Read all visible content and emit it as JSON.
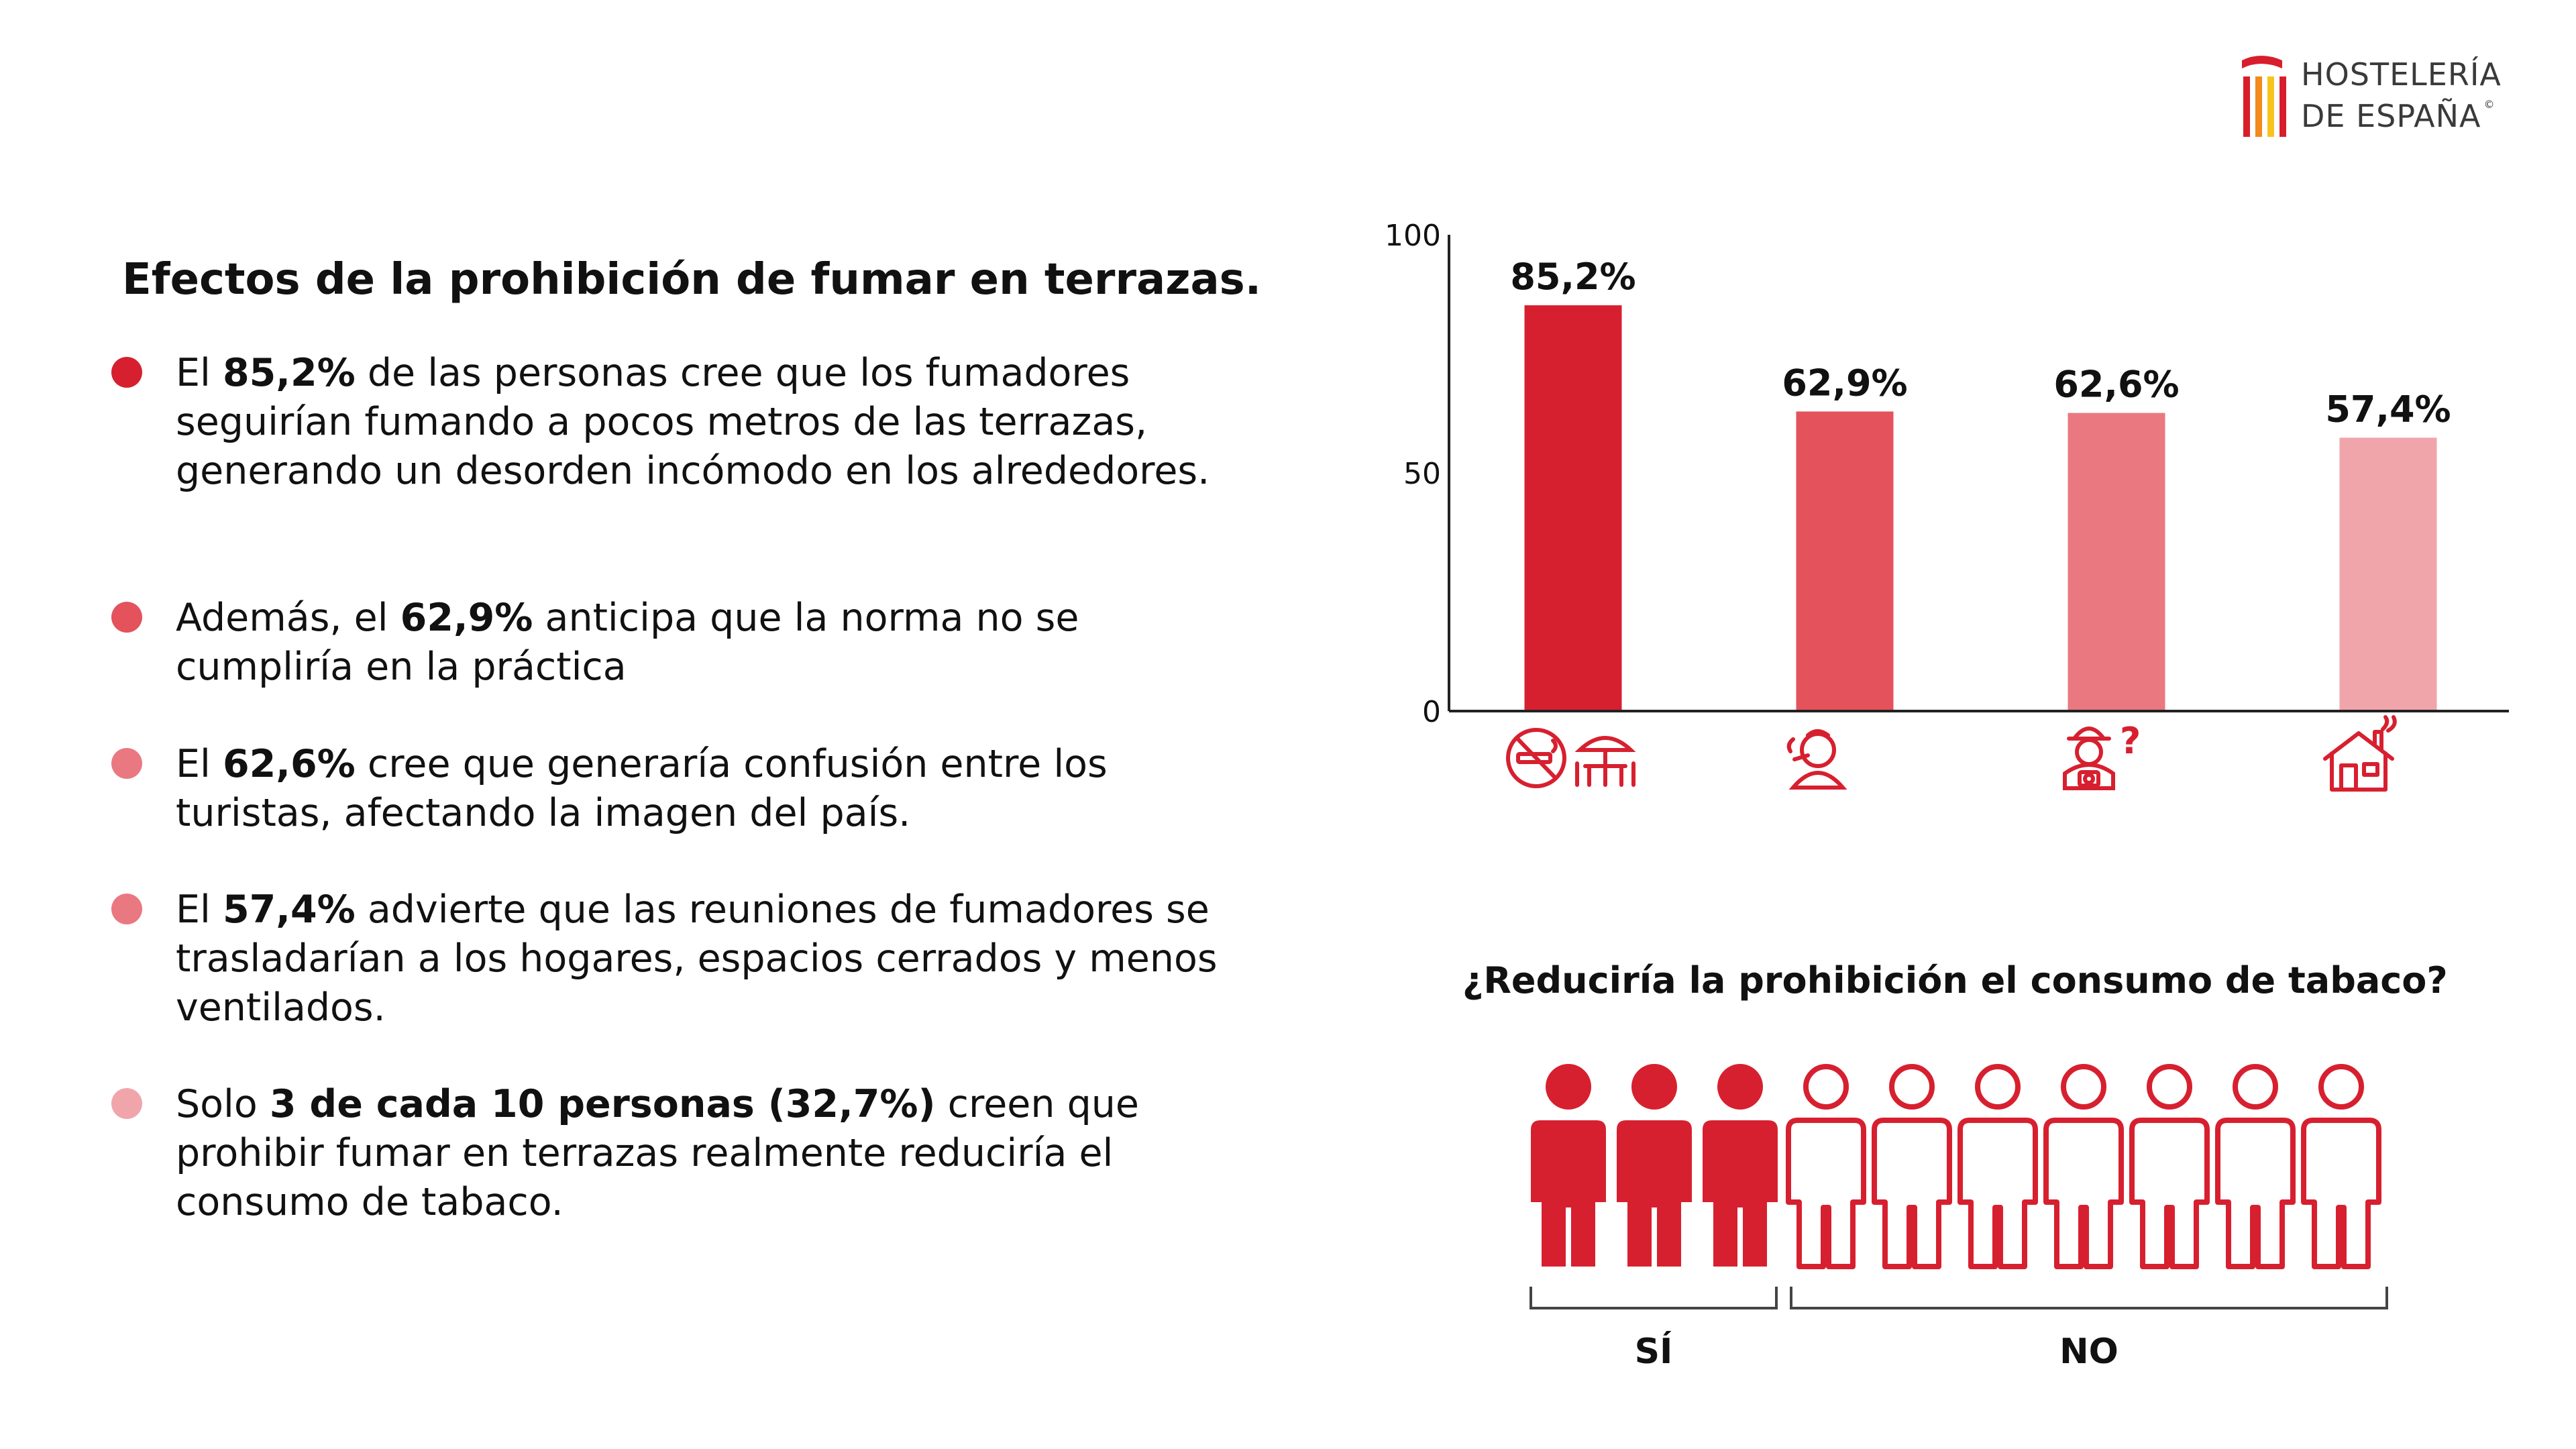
{
  "brand": {
    "line1": "HOSTELERÍA",
    "line2": "DE ESPAÑA",
    "copyright": "©",
    "colors": [
      "#d81e2c",
      "#f28a1e",
      "#f7c41f"
    ]
  },
  "title": "Efectos de la prohibición de fumar en terrazas.",
  "bullets": [
    {
      "pre": "El ",
      "bold": "85,2%",
      "post": " de las personas cree que los fumadores seguirían fumando a pocos metros de las terrazas, generando un desorden incómodo en los alrededores.",
      "color": "#d7202f"
    },
    {
      "pre": "Además, el ",
      "bold": "62,9%",
      "post": " anticipa que la norma no se cumpliría en la práctica",
      "color": "#e4525c"
    },
    {
      "pre": "El ",
      "bold": "62,6%",
      "post": " cree que generaría confusión entre los turistas, afectando la imagen del país.",
      "color": "#ea7880"
    },
    {
      "pre": "El ",
      "bold": "57,4%",
      "post": " advierte que las reuniones de fumadores se trasladarían a los hogares, espacios cerrados y menos ventilados.",
      "color": "#ea7880"
    },
    {
      "pre": "Solo ",
      "bold": "3 de cada 10 personas (32,7%)",
      "post": " creen que prohibir fumar en terrazas realmente reduciría el consumo de tabaco.",
      "color": "#f0a5ab"
    }
  ],
  "chart_data": {
    "type": "bar",
    "categories": [
      "no-smoking-terrace-icon",
      "smoker-icon",
      "tourist-icon",
      "home-smoke-icon"
    ],
    "values": [
      85.2,
      62.9,
      62.6,
      57.4
    ],
    "value_labels": [
      "85,2%",
      "62,9%",
      "62,6%",
      "57,4%"
    ],
    "colors": [
      "#d7202f",
      "#e4525c",
      "#ea7880",
      "#f0a5ab"
    ],
    "ylim": [
      0,
      100
    ],
    "yticks": [
      "0",
      "50",
      "100"
    ],
    "title": "",
    "xlabel": "",
    "ylabel": ""
  },
  "pictogram": {
    "question": "¿Reduciría la prohibición el consumo de tabaco?",
    "yes_count": 3,
    "total": 10,
    "yes_label": "SÍ",
    "no_label": "NO",
    "color": "#d7202f"
  }
}
